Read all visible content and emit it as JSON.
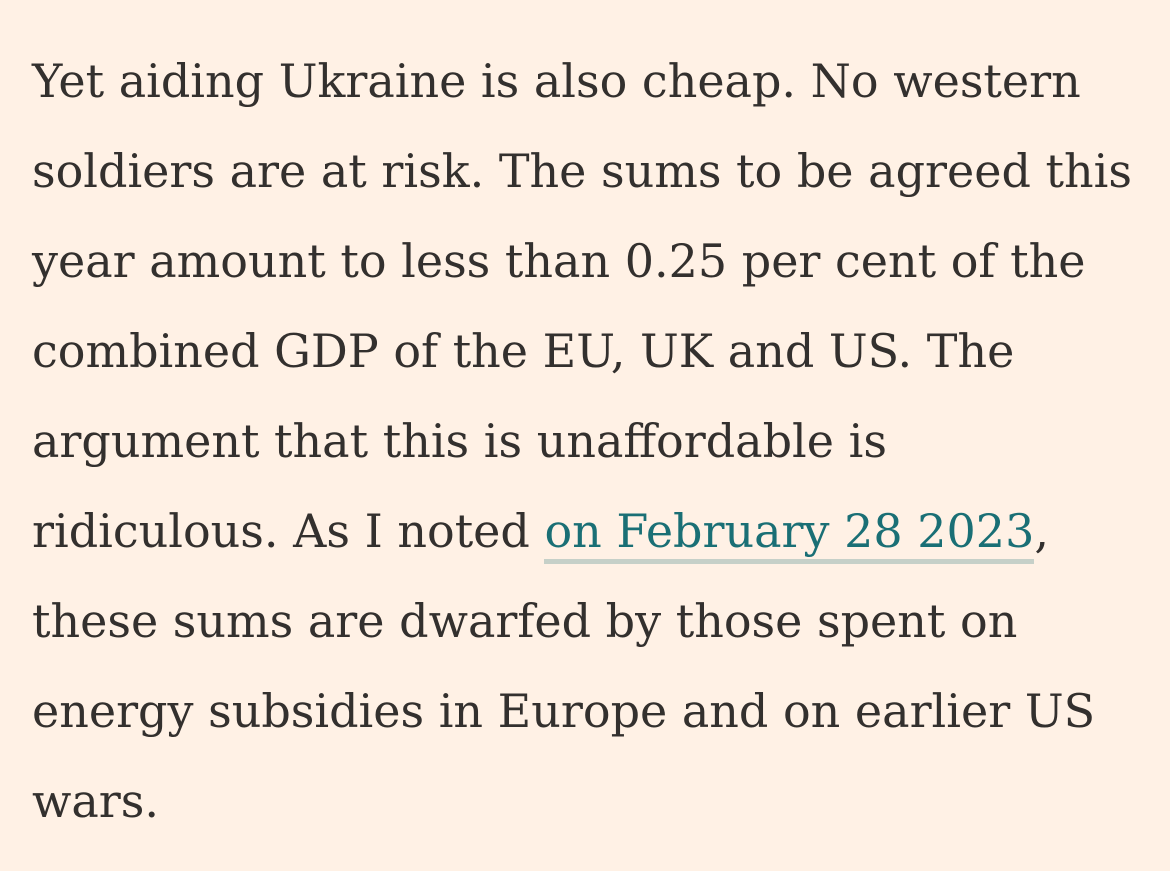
{
  "paragraph": {
    "lines": [
      "Yet aiding Ukraine is also cheap. No western",
      "soldiers are at risk. The sums to be agreed this",
      "year amount to less than 0.25 per cent of the",
      "combined GDP of the EU, UK and US. The",
      "argument that this is unaffordable is"
    ],
    "link_line": {
      "before": "ridiculous. As I noted ",
      "link_text": "on February 28 2023",
      "after": ","
    },
    "lines_after": [
      "these sums are dwarfed by those spent on",
      "energy subsidies in Europe and on earlier US",
      "wars."
    ]
  },
  "colors": {
    "background": "#fff1e5",
    "text": "#33302e",
    "link": "#1a6f75"
  }
}
